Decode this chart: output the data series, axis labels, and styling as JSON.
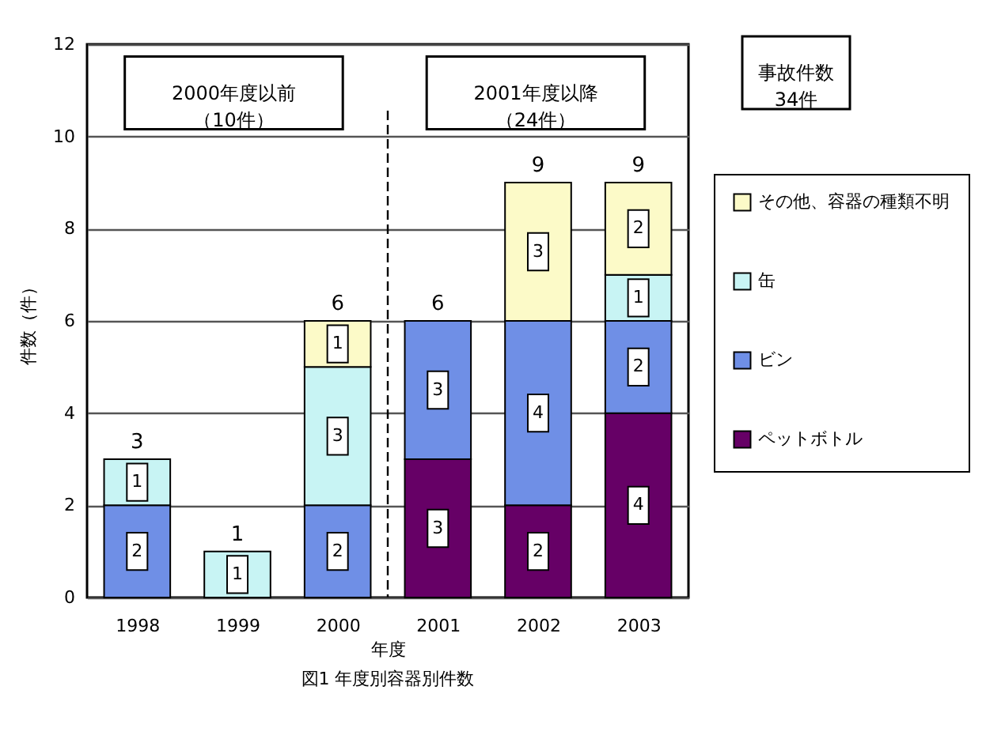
{
  "chart_data": {
    "type": "bar",
    "title": "図1 年度別容器別件数",
    "xlabel": "年度",
    "ylabel": "件数（件）",
    "x": [
      1998,
      1999,
      2000,
      2001,
      2002,
      2003
    ],
    "xlim": [
      1997.5,
      2003.5
    ],
    "xticks": [
      1998,
      1999,
      2000,
      2001,
      2002,
      2003
    ],
    "ylim": [
      0,
      12
    ],
    "yticks": [
      0,
      2,
      4,
      6,
      8,
      10,
      12
    ],
    "stacked": true,
    "data_labels": true,
    "series": [
      {
        "name": "ペットボトル",
        "color": "#660066",
        "values": [
          null,
          null,
          null,
          3,
          2,
          4
        ]
      },
      {
        "name": "ビン",
        "color": "#6f8fe6",
        "values": [
          2,
          null,
          2,
          3,
          4,
          2
        ]
      },
      {
        "name": "缶",
        "color": "#c8f4f4",
        "values": [
          1,
          1,
          3,
          null,
          null,
          1
        ]
      },
      {
        "name": "その他、容器の種類不明",
        "color": "#fcfac8",
        "values": [
          null,
          null,
          1,
          null,
          3,
          2
        ]
      }
    ],
    "totals": [
      "3",
      "1",
      "6",
      "6",
      "9",
      "9"
    ],
    "ref_lines": [
      {
        "axis": "x",
        "value": 2000.5,
        "line_style": "dashed",
        "color": "#000000"
      }
    ],
    "annotations": [
      "2000年度以前（10件）",
      "2001年度以降（24件）",
      "事故件数34件"
    ],
    "grid": "y",
    "legend": "right"
  }
}
